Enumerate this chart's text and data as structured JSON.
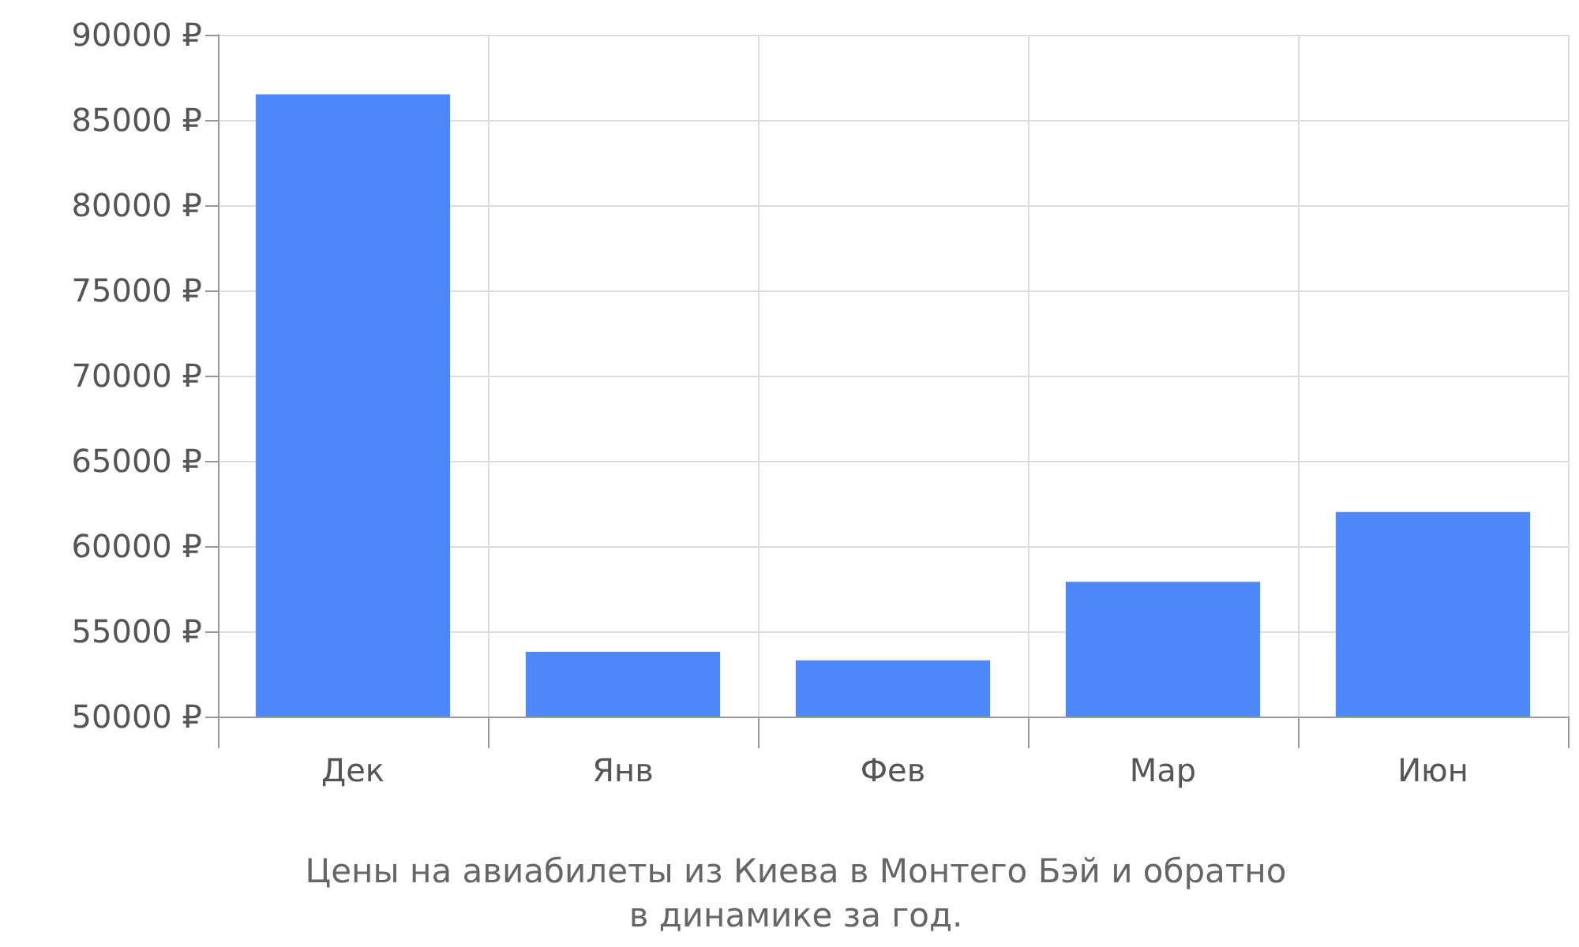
{
  "chart_data": {
    "type": "bar",
    "title": "Цены на авиабилеты из Киева в Монтего Бэй и обратно\nв динамике за год.",
    "categories": [
      "Дек",
      "Янв",
      "Фев",
      "Мар",
      "Июн"
    ],
    "values": [
      86500,
      53800,
      53300,
      57900,
      62000
    ],
    "color": "#4e89fb",
    "ylim": [
      50000,
      90000
    ],
    "yticks": [
      {
        "value": 50000,
        "label": "50000 ₽"
      },
      {
        "value": 55000,
        "label": "55000 ₽"
      },
      {
        "value": 60000,
        "label": "60000 ₽"
      },
      {
        "value": 65000,
        "label": "65000 ₽"
      },
      {
        "value": 70000,
        "label": "70000 ₽"
      },
      {
        "value": 75000,
        "label": "75000 ₽"
      },
      {
        "value": 80000,
        "label": "80000 ₽"
      },
      {
        "value": 85000,
        "label": "85000 ₽"
      },
      {
        "value": 90000,
        "label": "90000 ₽"
      }
    ],
    "grid": true
  }
}
